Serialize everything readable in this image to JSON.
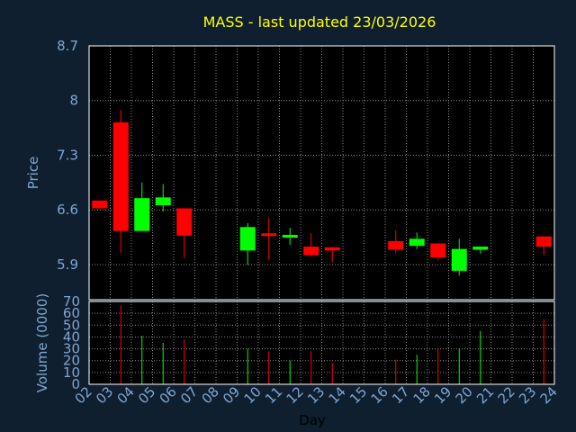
{
  "chart_data": {
    "type": "candlestick",
    "title": "MASS - last updated 23/03/2026",
    "xlabel": "Day",
    "ylabel": "Price",
    "volume_label": "Volume (0000)",
    "ylim": [
      5.45,
      8.7
    ],
    "price_ticks": [
      5.9,
      6.6,
      7.3,
      8,
      8.7
    ],
    "volume_ylim": [
      0,
      70
    ],
    "volume_ticks": [
      0,
      10,
      20,
      30,
      40,
      50,
      60,
      70
    ],
    "x_ticks": [
      "02",
      "03",
      "04",
      "05",
      "06",
      "07",
      "08",
      "09",
      "10",
      "11",
      "12",
      "13",
      "14",
      "15",
      "16",
      "17",
      "18",
      "19",
      "20",
      "21",
      "22",
      "23",
      "24"
    ],
    "grid": true,
    "up_color": "#00ff00",
    "down_color": "#ff0000",
    "candles": [
      {
        "day": "02",
        "open": 6.72,
        "close": 6.62,
        "high": 6.72,
        "low": 6.62,
        "volume": 0
      },
      {
        "day": "03",
        "open": 7.72,
        "close": 6.33,
        "high": 7.88,
        "low": 6.05,
        "volume": 67
      },
      {
        "day": "04",
        "open": 6.33,
        "close": 6.75,
        "high": 6.95,
        "low": 6.33,
        "volume": 41
      },
      {
        "day": "05",
        "open": 6.66,
        "close": 6.76,
        "high": 6.93,
        "low": 6.58,
        "volume": 35
      },
      {
        "day": "06",
        "open": 6.62,
        "close": 6.27,
        "high": 6.62,
        "low": 5.98,
        "volume": 38
      },
      {
        "day": "09",
        "open": 6.08,
        "close": 6.38,
        "high": 6.43,
        "low": 5.9,
        "volume": 30
      },
      {
        "day": "10",
        "open": 6.3,
        "close": 6.27,
        "high": 6.5,
        "low": 5.96,
        "volume": 28
      },
      {
        "day": "11",
        "open": 6.25,
        "close": 6.28,
        "high": 6.37,
        "low": 6.15,
        "volume": 20
      },
      {
        "day": "12",
        "open": 6.13,
        "close": 6.02,
        "high": 6.3,
        "low": 6.0,
        "volume": 28
      },
      {
        "day": "13",
        "open": 6.12,
        "close": 6.08,
        "high": 6.13,
        "low": 5.93,
        "volume": 18
      },
      {
        "day": "16",
        "open": 6.2,
        "close": 6.09,
        "high": 6.34,
        "low": 6.05,
        "volume": 21
      },
      {
        "day": "17",
        "open": 6.14,
        "close": 6.23,
        "high": 6.31,
        "low": 6.1,
        "volume": 25
      },
      {
        "day": "18",
        "open": 6.17,
        "close": 5.99,
        "high": 6.17,
        "low": 5.96,
        "volume": 30
      },
      {
        "day": "19",
        "open": 5.82,
        "close": 6.1,
        "high": 6.23,
        "low": 5.76,
        "volume": 30
      },
      {
        "day": "20",
        "open": 6.09,
        "close": 6.13,
        "high": 6.13,
        "low": 6.04,
        "volume": 45
      },
      {
        "day": "23",
        "open": 6.26,
        "close": 6.13,
        "high": 6.26,
        "low": 6.02,
        "volume": 55
      }
    ]
  }
}
